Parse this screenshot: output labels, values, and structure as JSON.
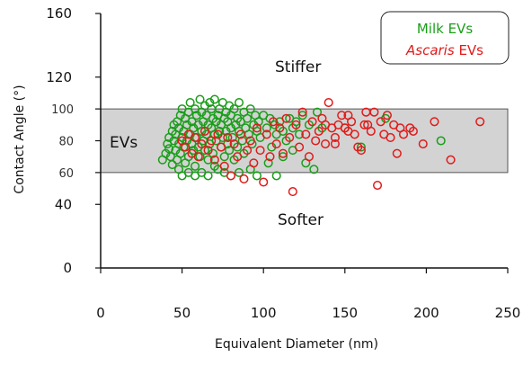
{
  "chart_data": {
    "type": "scatter",
    "xlabel": "Equivalent Diameter (nm)",
    "ylabel": "Contact Angle (°)",
    "xlim": [
      0,
      250
    ],
    "ylim": [
      0,
      160
    ],
    "x_ticks": [
      "0",
      "50",
      "100",
      "150",
      "200",
      "250"
    ],
    "y_ticks_outer": [
      {
        "value": 0,
        "label": "0"
      },
      {
        "value": 40,
        "label": "40"
      },
      {
        "value": 120,
        "label": "120"
      },
      {
        "value": 160,
        "label": "160"
      }
    ],
    "y_ticks_inner": [
      {
        "value": 60,
        "label": "60"
      },
      {
        "value": 80,
        "label": "80"
      },
      {
        "value": 100,
        "label": "100"
      }
    ],
    "band": {
      "y_min": 60,
      "y_max": 100,
      "color": "#d3d3d3"
    },
    "annotations": {
      "band_label": "EVs",
      "above_label": "Stiffer",
      "below_label": "Softer"
    },
    "legend": {
      "position": "top-right",
      "entries": [
        {
          "prefix": "Milk",
          "suffix": " EVs",
          "italic_prefix": false,
          "color": "#1a9e1a"
        },
        {
          "prefix": "Ascaris",
          "suffix": " EVs",
          "italic_prefix": true,
          "color": "#e01b1b"
        }
      ]
    },
    "series": [
      {
        "name": "Milk EVs",
        "color": "#1a9e1a",
        "points": [
          [
            38,
            68
          ],
          [
            40,
            72
          ],
          [
            41,
            78
          ],
          [
            42,
            82
          ],
          [
            42,
            75
          ],
          [
            43,
            70
          ],
          [
            44,
            86
          ],
          [
            44,
            65
          ],
          [
            45,
            80
          ],
          [
            45,
            90
          ],
          [
            46,
            74
          ],
          [
            46,
            84
          ],
          [
            47,
            92
          ],
          [
            47,
            68
          ],
          [
            48,
            78
          ],
          [
            48,
            88
          ],
          [
            49,
            96
          ],
          [
            49,
            72
          ],
          [
            50,
            82
          ],
          [
            50,
            100
          ],
          [
            51,
            76
          ],
          [
            51,
            86
          ],
          [
            52,
            94
          ],
          [
            52,
            66
          ],
          [
            53,
            80
          ],
          [
            53,
            90
          ],
          [
            54,
            98
          ],
          [
            54,
            70
          ],
          [
            55,
            84
          ],
          [
            55,
            104
          ],
          [
            56,
            78
          ],
          [
            56,
            92
          ],
          [
            57,
            74
          ],
          [
            57,
            88
          ],
          [
            58,
            100
          ],
          [
            58,
            64
          ],
          [
            59,
            82
          ],
          [
            59,
            96
          ],
          [
            60,
            76
          ],
          [
            60,
            90
          ],
          [
            61,
            106
          ],
          [
            61,
            70
          ],
          [
            62,
            86
          ],
          [
            62,
            98
          ],
          [
            63,
            80
          ],
          [
            63,
            92
          ],
          [
            64,
            74
          ],
          [
            64,
            102
          ],
          [
            65,
            84
          ],
          [
            65,
            96
          ],
          [
            66,
            68
          ],
          [
            66,
            90
          ],
          [
            67,
            104
          ],
          [
            67,
            78
          ],
          [
            68,
            88
          ],
          [
            68,
            100
          ],
          [
            69,
            72
          ],
          [
            69,
            94
          ],
          [
            70,
            84
          ],
          [
            70,
            106
          ],
          [
            71,
            80
          ],
          [
            71,
            92
          ],
          [
            72,
            96
          ],
          [
            72,
            62
          ],
          [
            73,
            86
          ],
          [
            73,
            100
          ],
          [
            74,
            76
          ],
          [
            74,
            90
          ],
          [
            75,
            82
          ],
          [
            75,
            104
          ],
          [
            76,
            70
          ],
          [
            76,
            94
          ],
          [
            77,
            86
          ],
          [
            77,
            98
          ],
          [
            78,
            78
          ],
          [
            78,
            92
          ],
          [
            79,
            102
          ],
          [
            79,
            74
          ],
          [
            80,
            88
          ],
          [
            80,
            96
          ],
          [
            81,
            82
          ],
          [
            82,
            100
          ],
          [
            82,
            68
          ],
          [
            83,
            90
          ],
          [
            84,
            94
          ],
          [
            84,
            76
          ],
          [
            85,
            104
          ],
          [
            85,
            86
          ],
          [
            86,
            92
          ],
          [
            87,
            80
          ],
          [
            88,
            98
          ],
          [
            88,
            72
          ],
          [
            89,
            88
          ],
          [
            90,
            94
          ],
          [
            91,
            84
          ],
          [
            92,
            100
          ],
          [
            93,
            78
          ],
          [
            94,
            90
          ],
          [
            95,
            96
          ],
          [
            96,
            86
          ],
          [
            97,
            92
          ],
          [
            98,
            82
          ],
          [
            100,
            96
          ],
          [
            102,
            88
          ],
          [
            104,
            94
          ],
          [
            105,
            76
          ],
          [
            107,
            90
          ],
          [
            108,
            84
          ],
          [
            110,
            92
          ],
          [
            112,
            86
          ],
          [
            114,
            80
          ],
          [
            116,
            94
          ],
          [
            118,
            88
          ],
          [
            120,
            92
          ],
          [
            122,
            84
          ],
          [
            124,
            96
          ],
          [
            128,
            90
          ],
          [
            131,
            62
          ],
          [
            133,
            98
          ],
          [
            136,
            88
          ],
          [
            150,
            88
          ],
          [
            160,
            76
          ],
          [
            175,
            94
          ],
          [
            209,
            80
          ],
          [
            54,
            60
          ],
          [
            58,
            58
          ],
          [
            66,
            58
          ],
          [
            76,
            60
          ],
          [
            85,
            60
          ],
          [
            92,
            62
          ],
          [
            96,
            58
          ],
          [
            103,
            66
          ],
          [
            108,
            58
          ],
          [
            112,
            70
          ],
          [
            118,
            74
          ],
          [
            126,
            66
          ],
          [
            48,
            62
          ],
          [
            50,
            58
          ],
          [
            62,
            60
          ],
          [
            70,
            64
          ]
        ]
      },
      {
        "name": "Ascaris EVs",
        "color": "#e01b1b",
        "points": [
          [
            50,
            80
          ],
          [
            52,
            76
          ],
          [
            54,
            84
          ],
          [
            56,
            72
          ],
          [
            58,
            82
          ],
          [
            60,
            70
          ],
          [
            62,
            78
          ],
          [
            64,
            86
          ],
          [
            66,
            74
          ],
          [
            68,
            80
          ],
          [
            70,
            68
          ],
          [
            72,
            84
          ],
          [
            74,
            76
          ],
          [
            76,
            64
          ],
          [
            78,
            82
          ],
          [
            80,
            58
          ],
          [
            82,
            78
          ],
          [
            84,
            70
          ],
          [
            86,
            84
          ],
          [
            88,
            56
          ],
          [
            90,
            74
          ],
          [
            92,
            80
          ],
          [
            94,
            66
          ],
          [
            96,
            88
          ],
          [
            98,
            74
          ],
          [
            100,
            54
          ],
          [
            102,
            84
          ],
          [
            104,
            70
          ],
          [
            106,
            92
          ],
          [
            108,
            78
          ],
          [
            110,
            88
          ],
          [
            112,
            72
          ],
          [
            114,
            94
          ],
          [
            116,
            82
          ],
          [
            118,
            48
          ],
          [
            120,
            90
          ],
          [
            122,
            76
          ],
          [
            124,
            98
          ],
          [
            126,
            84
          ],
          [
            128,
            70
          ],
          [
            130,
            92
          ],
          [
            132,
            80
          ],
          [
            134,
            86
          ],
          [
            136,
            94
          ],
          [
            138,
            78
          ],
          [
            140,
            104
          ],
          [
            142,
            88
          ],
          [
            144,
            82
          ],
          [
            146,
            90
          ],
          [
            148,
            96
          ],
          [
            150,
            88
          ],
          [
            152,
            86
          ],
          [
            154,
            92
          ],
          [
            156,
            84
          ],
          [
            158,
            76
          ],
          [
            160,
            74
          ],
          [
            162,
            90
          ],
          [
            164,
            90
          ],
          [
            166,
            86
          ],
          [
            168,
            98
          ],
          [
            170,
            52
          ],
          [
            172,
            92
          ],
          [
            174,
            84
          ],
          [
            176,
            96
          ],
          [
            180,
            90
          ],
          [
            182,
            72
          ],
          [
            184,
            88
          ],
          [
            186,
            84
          ],
          [
            190,
            88
          ],
          [
            192,
            86
          ],
          [
            198,
            78
          ],
          [
            205,
            92
          ],
          [
            215,
            68
          ],
          [
            233,
            92
          ],
          [
            144,
            78
          ],
          [
            138,
            90
          ],
          [
            152,
            96
          ],
          [
            163,
            98
          ],
          [
            178,
            82
          ]
        ]
      }
    ]
  }
}
